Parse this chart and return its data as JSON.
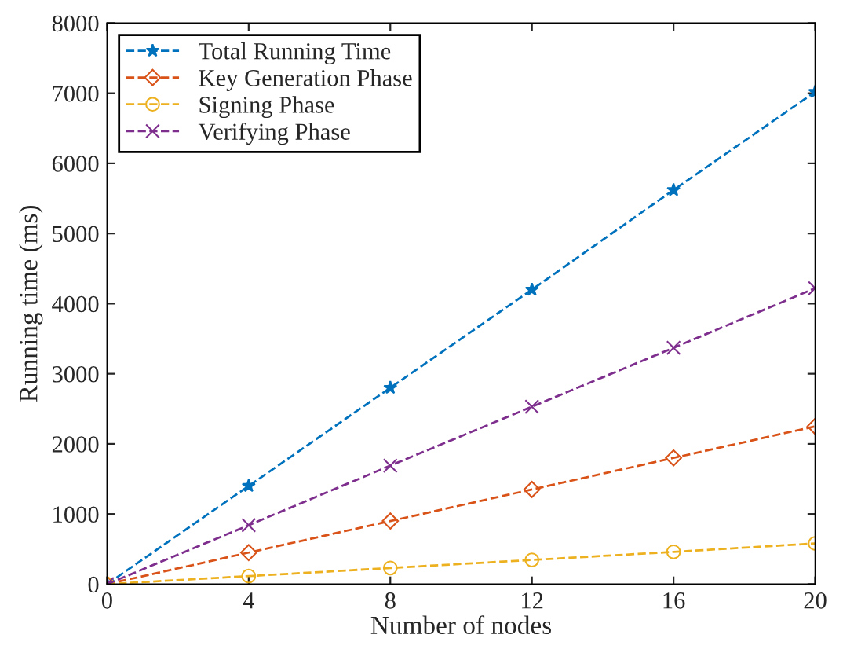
{
  "chart_data": {
    "type": "line",
    "xlabel": "Number of nodes",
    "ylabel": "Running time (ms)",
    "x": [
      0,
      4,
      8,
      12,
      16,
      20
    ],
    "series": [
      {
        "name": "Total Running Time",
        "color": "#0072bd",
        "marker": "star",
        "values": [
          0,
          1400,
          2800,
          4200,
          5620,
          7020
        ]
      },
      {
        "name": "Key Generation Phase",
        "color": "#d95319",
        "marker": "diamond",
        "values": [
          0,
          450,
          900,
          1350,
          1800,
          2250
        ]
      },
      {
        "name": "Signing Phase",
        "color": "#edb120",
        "marker": "circle",
        "values": [
          0,
          115,
          230,
          345,
          460,
          580
        ]
      },
      {
        "name": "Verifying Phase",
        "color": "#7e2f8e",
        "marker": "cross",
        "values": [
          0,
          840,
          1690,
          2530,
          3370,
          4220
        ]
      }
    ],
    "xlim": [
      0,
      20
    ],
    "xticks": [
      0,
      4,
      8,
      12,
      16,
      20
    ],
    "ylim": [
      0,
      8000
    ],
    "yticks": [
      0,
      1000,
      2000,
      3000,
      4000,
      5000,
      6000,
      7000,
      8000
    ],
    "line_style": "dashed",
    "legend": "top left",
    "grid": false
  }
}
